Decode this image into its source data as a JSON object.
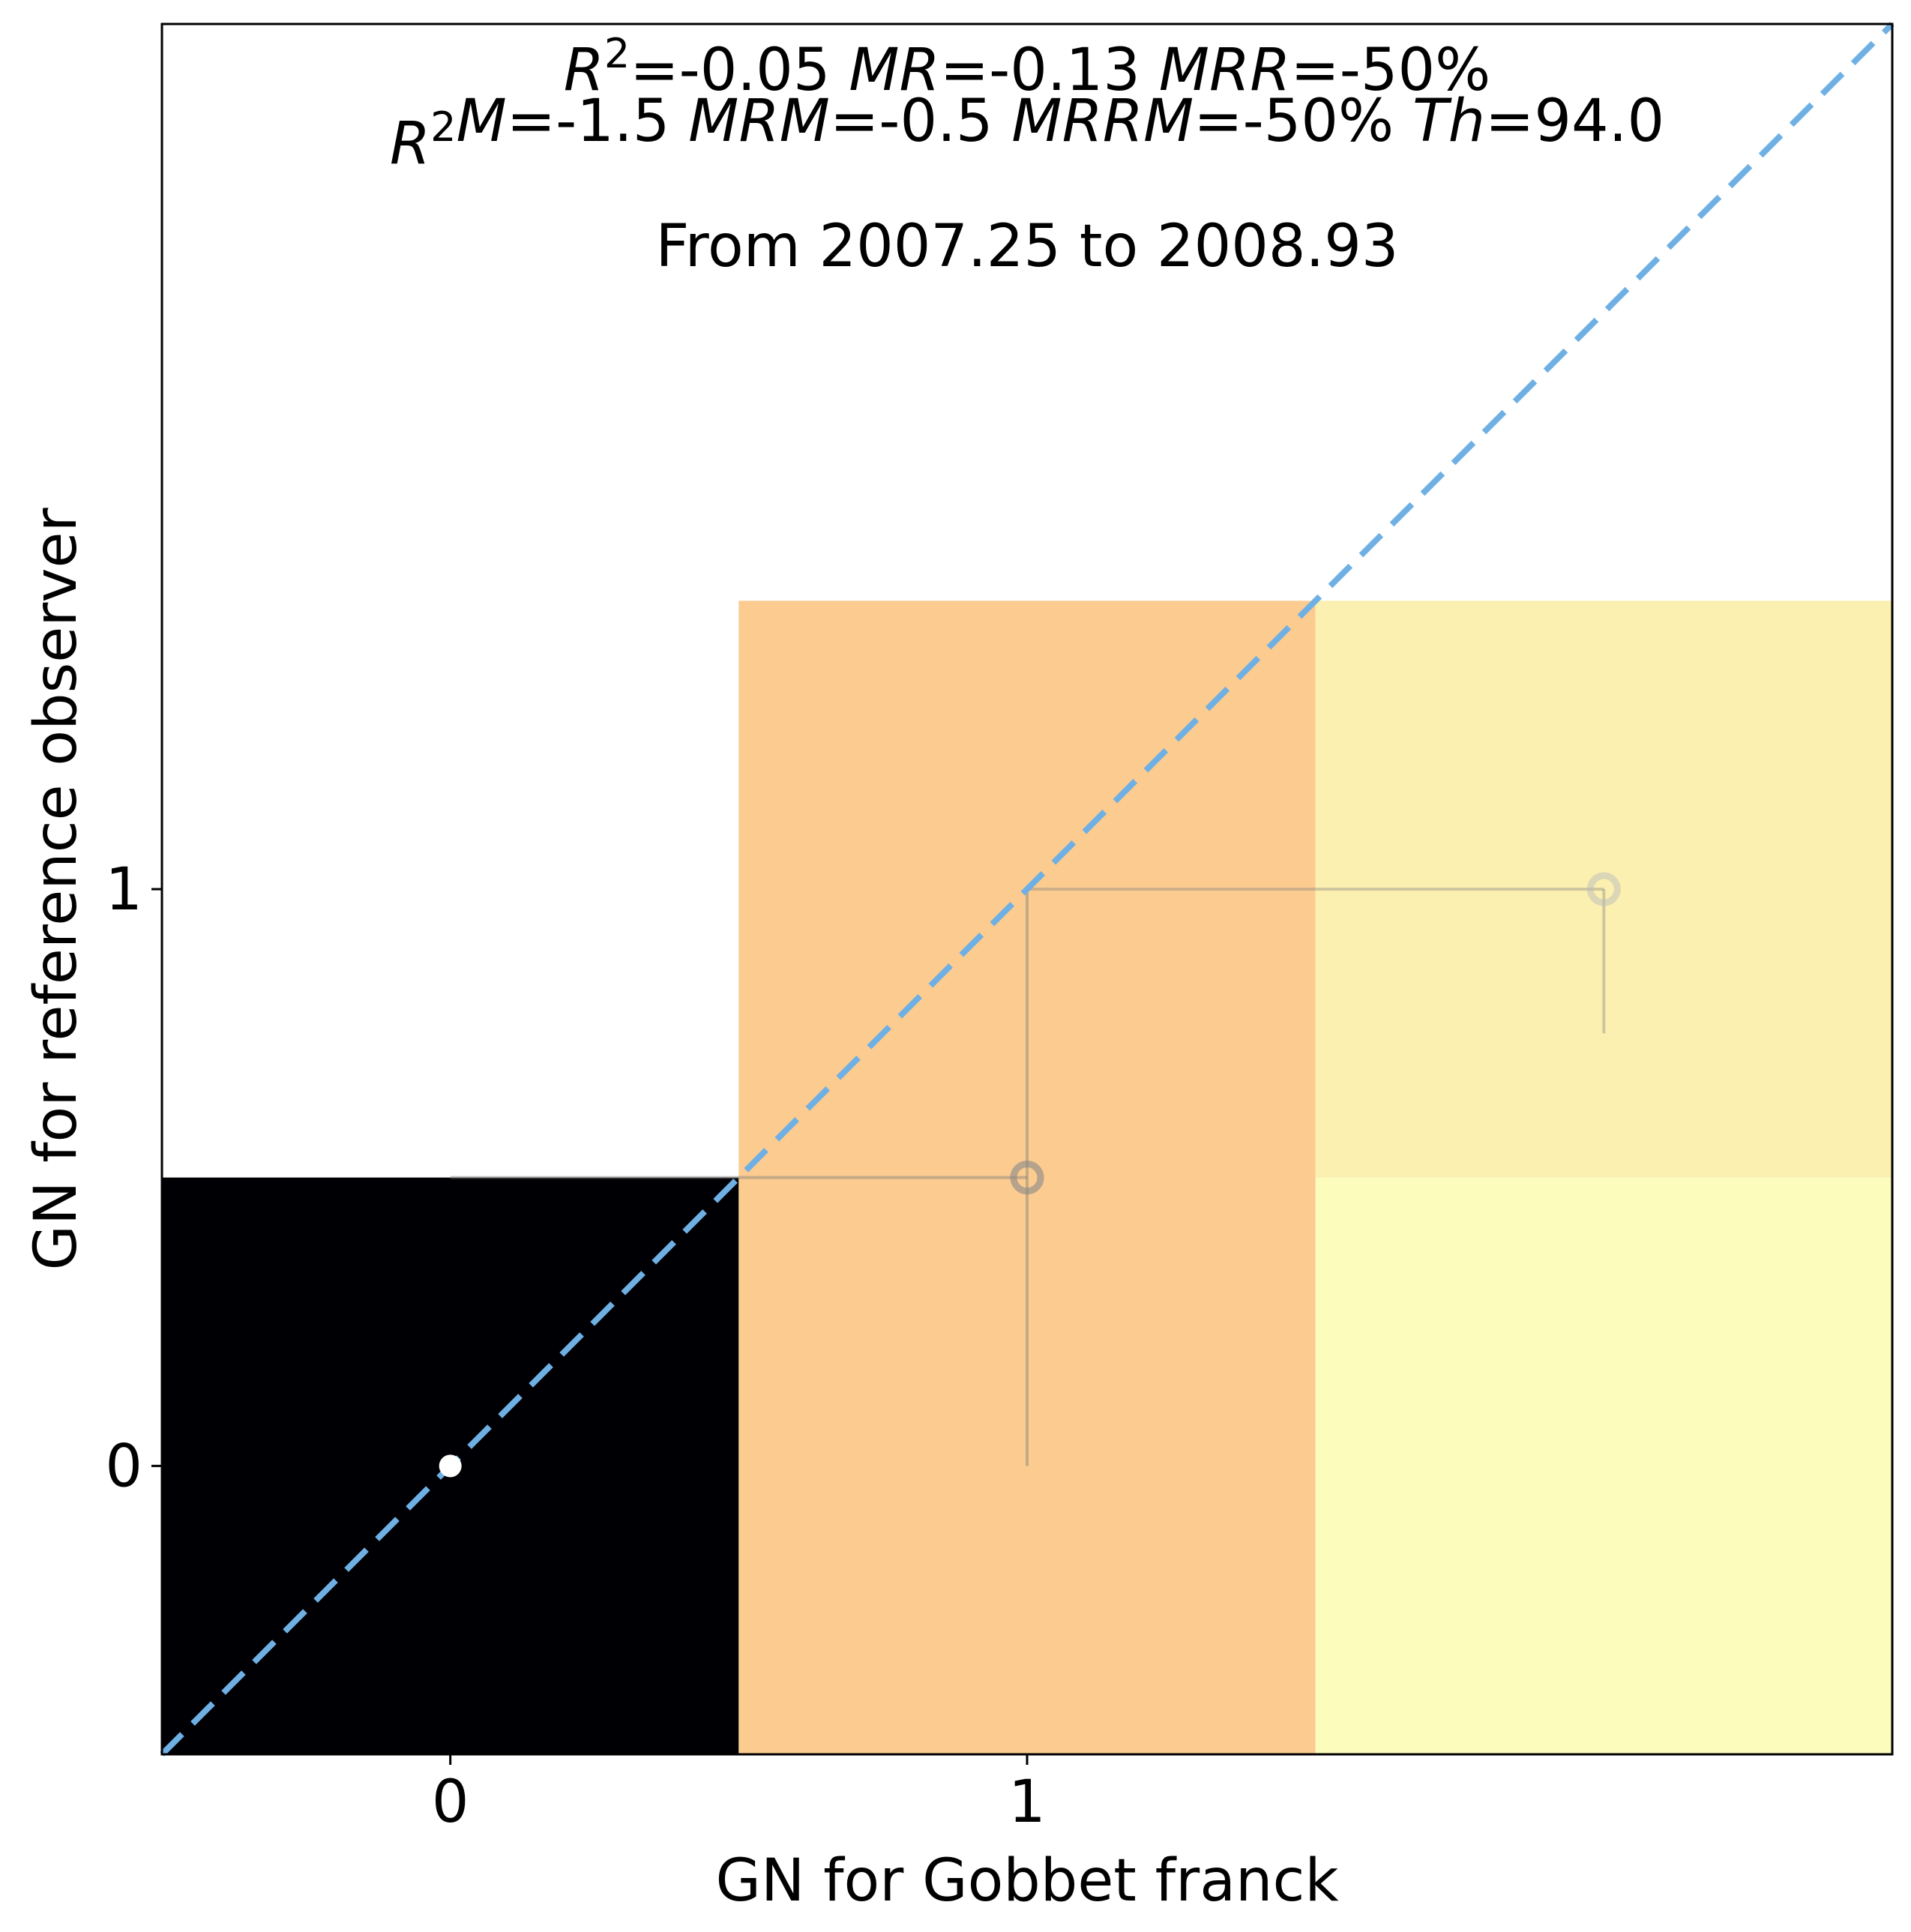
{
  "chart_data": {
    "type": "heatmap",
    "title_lines": [
      [
        "R",
        "2",
        "=-0.05 ",
        "MR",
        "=-0.13 ",
        "MRR",
        "=-50%"
      ],
      [
        "R",
        "2",
        "",
        "M",
        "=-1.5 ",
        "MRM",
        "=-0.5 ",
        "MRRM",
        "=-50% ",
        "Th",
        "=94.0"
      ]
    ],
    "subtitle": "From 2007.25  to 2008.93",
    "xlabel": "GN for Gobbet franck",
    "ylabel": "GN for reference observer",
    "xlim": [
      -0.5,
      2.5
    ],
    "ylim": [
      -0.5,
      2.5
    ],
    "x_ticks": [
      0,
      1
    ],
    "y_ticks": [
      0,
      1
    ],
    "x_tick_labels": [
      "0",
      "1"
    ],
    "y_tick_labels": [
      "0",
      "1"
    ],
    "cells": [
      {
        "x": [
          -0.5,
          0.5
        ],
        "y": [
          -0.5,
          0.5
        ],
        "color": "#000004"
      },
      {
        "x": [
          0.5,
          1.5
        ],
        "y": [
          -0.5,
          1.5
        ],
        "color": "#fbcb90"
      },
      {
        "x": [
          1.5,
          2.5
        ],
        "y": [
          -0.5,
          0.5
        ],
        "color": "#fcfcbd"
      },
      {
        "x": [
          1.5,
          2.5
        ],
        "y": [
          0.5,
          1.5
        ],
        "color": "#fbf0b0"
      }
    ],
    "points": [
      {
        "x": 0,
        "y": 0,
        "xerr": [
          0,
          0
        ],
        "yerr": [
          0,
          0
        ],
        "marker": "filled",
        "color": "#ffffff"
      },
      {
        "x": 1,
        "y": 0.5,
        "xerr": [
          1,
          0
        ],
        "yerr": [
          0.5,
          0.5
        ],
        "marker": "open",
        "color": "#888888",
        "opacity": 0.6
      },
      {
        "x": 2,
        "y": 1,
        "xerr": [
          1,
          0
        ],
        "yerr": [
          0.25,
          0
        ],
        "marker": "open",
        "color": "#bbbbbb",
        "opacity": 0.5
      }
    ],
    "identity_line": {
      "color": "#6fb0e4",
      "style": "dashed"
    },
    "grid": false,
    "legend": "none"
  }
}
